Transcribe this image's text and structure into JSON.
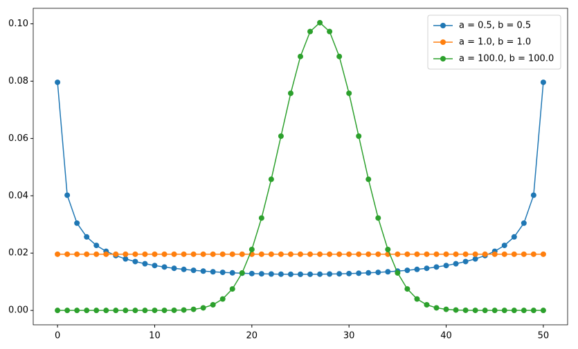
{
  "chart_data": {
    "type": "line",
    "x": [
      0,
      1,
      2,
      3,
      4,
      5,
      6,
      7,
      8,
      9,
      10,
      11,
      12,
      13,
      14,
      15,
      16,
      17,
      18,
      19,
      20,
      21,
      22,
      23,
      24,
      25,
      26,
      27,
      28,
      29,
      30,
      31,
      32,
      33,
      34,
      35,
      36,
      37,
      38,
      39,
      40,
      41,
      42,
      43,
      44,
      45,
      46,
      47,
      48,
      49,
      50
    ],
    "series": [
      {
        "name": "a = 0.5, b = 0.5",
        "color": "#1f77b4",
        "values": [
          0.0796,
          0.0402,
          0.03046,
          0.02565,
          0.02269,
          0.02064,
          0.01913,
          0.01797,
          0.01705,
          0.01629,
          0.01567,
          0.01515,
          0.0147,
          0.01432,
          0.014,
          0.01373,
          0.01349,
          0.01329,
          0.01312,
          0.01298,
          0.01286,
          0.01277,
          0.0127,
          0.01265,
          0.01262,
          0.01261,
          0.01262,
          0.01265,
          0.0127,
          0.01277,
          0.01286,
          0.01298,
          0.01312,
          0.01329,
          0.01349,
          0.01373,
          0.014,
          0.01432,
          0.0147,
          0.01515,
          0.01567,
          0.01629,
          0.01705,
          0.01797,
          0.01913,
          0.02064,
          0.02269,
          0.02565,
          0.03046,
          0.0402,
          0.0796
        ]
      },
      {
        "name": "a = 1.0, b = 1.0",
        "color": "#ff7f0e",
        "values": [
          0.01961,
          0.01961,
          0.01961,
          0.01961,
          0.01961,
          0.01961,
          0.01961,
          0.01961,
          0.01961,
          0.01961,
          0.01961,
          0.01961,
          0.01961,
          0.01961,
          0.01961,
          0.01961,
          0.01961,
          0.01961,
          0.01961,
          0.01961,
          0.01961,
          0.01961,
          0.01961,
          0.01961,
          0.01961,
          0.01961,
          0.01961,
          0.01961,
          0.01961,
          0.01961,
          0.01961,
          0.01961,
          0.01961,
          0.01961,
          0.01961,
          0.01961,
          0.01961,
          0.01961,
          0.01961,
          0.01961,
          0.01961,
          0.01961,
          0.01961,
          0.01961,
          0.01961,
          0.01961,
          0.01961,
          0.01961,
          0.01961,
          0.01961,
          0.01961
        ]
      },
      {
        "name": "a = 100.0, b = 100.0",
        "color": "#2ca02c",
        "values": [
          0,
          0,
          0,
          0,
          0,
          0,
          0,
          0,
          0,
          0,
          2e-05,
          2e-05,
          5e-05,
          0.00014,
          0.00038,
          0.0009,
          0.00197,
          0.00399,
          0.0075,
          0.01308,
          0.02126,
          0.03225,
          0.04576,
          0.06081,
          0.07577,
          0.08861,
          0.09731,
          0.1004,
          0.09731,
          0.08861,
          0.07577,
          0.06081,
          0.04576,
          0.03225,
          0.02126,
          0.01308,
          0.0075,
          0.00399,
          0.00197,
          0.0009,
          0.00038,
          0.00014,
          5e-05,
          2e-05,
          0,
          0,
          0,
          0,
          0,
          0,
          0
        ]
      }
    ],
    "xlim": [
      -2.5,
      52.5
    ],
    "ylim": [
      -0.00502,
      0.10542
    ],
    "xticks": [
      0,
      10,
      20,
      30,
      40,
      50
    ],
    "yticks": [
      {
        "value": 0,
        "label": "0.00"
      },
      0.02,
      0.04,
      0.06,
      0.08,
      {
        "value": 0.1,
        "label": "0.10"
      }
    ],
    "legend": "upper right"
  }
}
